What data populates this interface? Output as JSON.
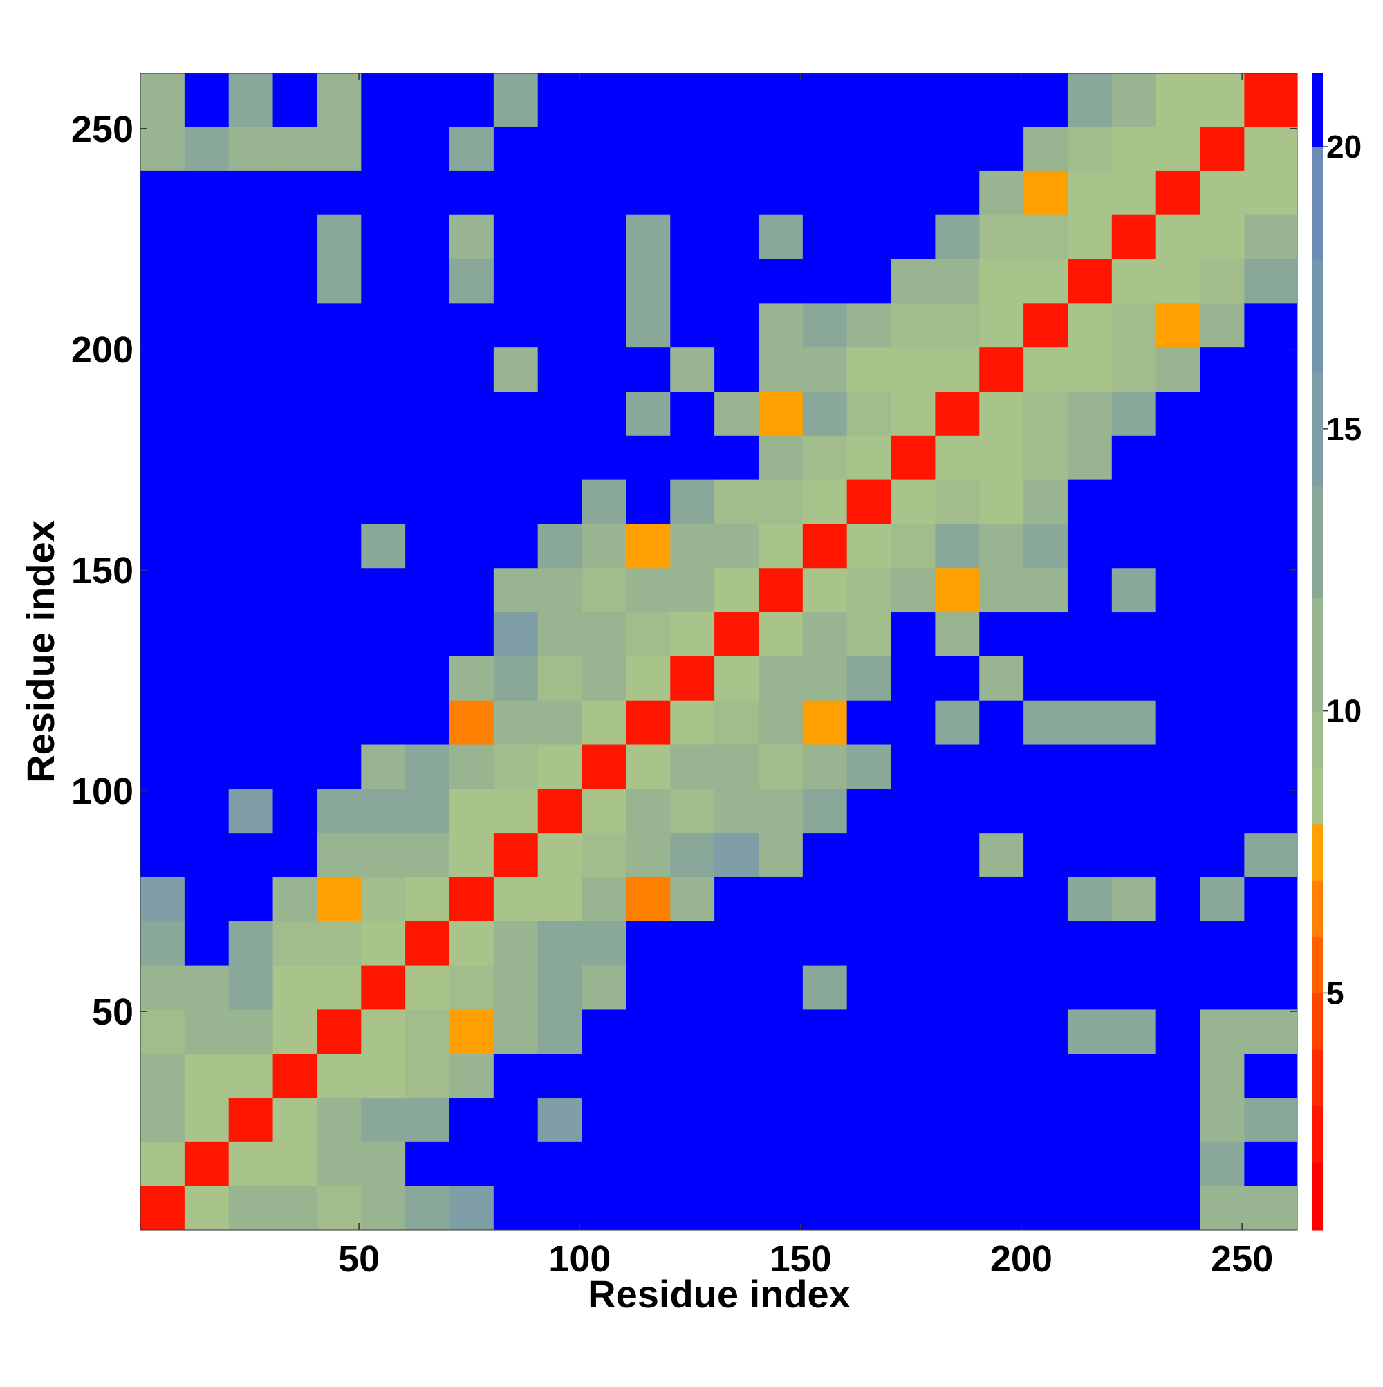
{
  "chart_data": {
    "type": "heatmap",
    "x_label": "Residue index",
    "y_label": "Residue index",
    "xlim": [
      0.5,
      262.5
    ],
    "ylim": [
      0.5,
      262.5
    ],
    "xticks": [
      50,
      100,
      150,
      200,
      250
    ],
    "yticks": [
      50,
      100,
      150,
      200,
      250
    ],
    "xbins": [
      0.5,
      10.5,
      20.5,
      30.5,
      40.5,
      50.5,
      60.5,
      70.5,
      80.5,
      90.5,
      100.5,
      110.5,
      120.5,
      130.5,
      140.5,
      150.5,
      160.5,
      170.5,
      180.5,
      190.5,
      200.5,
      210.5,
      220.5,
      230.5,
      240.5,
      250.5,
      262.5
    ],
    "ybins": [
      0.5,
      10.5,
      20.5,
      30.5,
      40.5,
      50.5,
      60.5,
      70.5,
      80.5,
      90.5,
      100.5,
      110.5,
      120.5,
      130.5,
      140.5,
      150.5,
      160.5,
      170.5,
      180.5,
      190.5,
      200.5,
      210.5,
      220.5,
      230.5,
      240.5,
      250.5,
      262.5
    ],
    "z": [
      [
        3,
        9,
        12,
        11,
        10,
        11,
        14,
        16,
        21,
        21,
        21,
        21,
        21,
        21,
        21,
        21,
        21,
        21,
        21,
        21,
        21,
        21,
        21,
        21,
        12,
        11
      ],
      [
        9,
        3,
        9,
        9,
        11,
        12,
        21,
        21,
        21,
        21,
        21,
        21,
        21,
        21,
        21,
        21,
        21,
        21,
        21,
        21,
        21,
        21,
        21,
        21,
        13,
        21
      ],
      [
        12,
        9,
        3,
        9,
        11,
        13,
        14,
        21,
        21,
        15,
        21,
        21,
        21,
        21,
        21,
        21,
        21,
        21,
        21,
        21,
        21,
        21,
        21,
        21,
        11,
        14
      ],
      [
        11,
        9,
        9,
        3,
        9,
        9,
        10,
        12,
        21,
        21,
        21,
        21,
        21,
        21,
        21,
        21,
        21,
        21,
        21,
        21,
        21,
        21,
        21,
        21,
        12,
        21
      ],
      [
        10,
        11,
        11,
        9,
        3,
        9,
        10,
        8,
        12,
        13,
        21,
        21,
        21,
        21,
        21,
        21,
        21,
        21,
        21,
        21,
        21,
        13,
        13,
        21,
        12,
        12
      ],
      [
        11,
        12,
        13,
        9,
        9,
        3,
        9,
        10,
        11,
        13,
        12,
        21,
        21,
        21,
        21,
        13,
        21,
        21,
        21,
        21,
        21,
        21,
        21,
        21,
        21,
        21
      ],
      [
        14,
        21,
        14,
        10,
        10,
        9,
        3,
        9,
        11,
        13,
        13,
        21,
        21,
        21,
        21,
        21,
        21,
        21,
        21,
        21,
        21,
        21,
        21,
        21,
        21,
        21
      ],
      [
        16,
        21,
        21,
        12,
        8,
        10,
        9,
        3,
        9,
        9,
        11,
        7,
        12,
        21,
        21,
        21,
        21,
        21,
        21,
        21,
        21,
        13,
        12,
        21,
        14,
        21
      ],
      [
        21,
        21,
        21,
        21,
        12,
        11,
        11,
        9,
        3,
        9,
        10,
        11,
        13,
        15,
        12,
        21,
        21,
        21,
        21,
        12,
        21,
        21,
        21,
        21,
        21,
        13
      ],
      [
        21,
        21,
        15,
        21,
        13,
        13,
        13,
        9,
        9,
        3,
        9,
        12,
        10,
        11,
        12,
        14,
        21,
        21,
        21,
        21,
        21,
        21,
        21,
        21,
        21,
        21
      ],
      [
        21,
        21,
        21,
        21,
        21,
        12,
        13,
        11,
        10,
        9,
        3,
        9,
        11,
        12,
        10,
        11,
        13,
        21,
        21,
        21,
        21,
        21,
        21,
        21,
        21,
        21
      ],
      [
        21,
        21,
        21,
        21,
        21,
        21,
        21,
        7,
        11,
        12,
        9,
        3,
        9,
        10,
        12,
        8,
        21,
        21,
        13,
        21,
        13,
        13,
        14,
        21,
        21,
        21
      ],
      [
        21,
        21,
        21,
        21,
        21,
        21,
        21,
        12,
        13,
        10,
        11,
        9,
        3,
        9,
        11,
        12,
        13,
        21,
        21,
        12,
        21,
        21,
        21,
        21,
        21,
        21
      ],
      [
        21,
        21,
        21,
        21,
        21,
        21,
        21,
        21,
        15,
        11,
        12,
        10,
        9,
        3,
        9,
        11,
        10,
        21,
        11,
        21,
        21,
        21,
        21,
        21,
        21,
        21
      ],
      [
        21,
        21,
        21,
        21,
        21,
        21,
        21,
        21,
        12,
        12,
        10,
        12,
        11,
        9,
        3,
        9,
        10,
        12,
        8,
        12,
        11,
        21,
        13,
        21,
        21,
        21
      ],
      [
        21,
        21,
        21,
        21,
        21,
        13,
        21,
        21,
        21,
        14,
        11,
        8,
        12,
        11,
        9,
        3,
        9,
        10,
        13,
        11,
        13,
        21,
        21,
        21,
        21,
        21
      ],
      [
        21,
        21,
        21,
        21,
        21,
        21,
        21,
        21,
        21,
        21,
        13,
        21,
        13,
        10,
        10,
        9,
        3,
        9,
        10,
        9,
        11,
        21,
        21,
        21,
        21,
        21
      ],
      [
        21,
        21,
        21,
        21,
        21,
        21,
        21,
        21,
        21,
        21,
        21,
        21,
        21,
        21,
        12,
        10,
        9,
        3,
        9,
        9,
        10,
        12,
        21,
        21,
        21,
        21
      ],
      [
        21,
        21,
        21,
        21,
        21,
        21,
        21,
        21,
        21,
        21,
        21,
        13,
        21,
        11,
        8,
        13,
        10,
        9,
        3,
        9,
        10,
        11,
        13,
        21,
        21,
        21
      ],
      [
        21,
        21,
        21,
        21,
        21,
        21,
        21,
        21,
        12,
        21,
        21,
        21,
        12,
        21,
        12,
        11,
        9,
        9,
        9,
        3,
        9,
        9,
        10,
        12,
        21,
        21
      ],
      [
        21,
        21,
        21,
        21,
        21,
        21,
        21,
        21,
        21,
        21,
        21,
        13,
        21,
        21,
        11,
        13,
        11,
        10,
        10,
        9,
        3,
        9,
        10,
        8,
        12,
        21
      ],
      [
        21,
        21,
        21,
        21,
        13,
        21,
        21,
        13,
        21,
        21,
        21,
        13,
        21,
        21,
        21,
        21,
        21,
        12,
        11,
        9,
        9,
        3,
        9,
        9,
        10,
        13
      ],
      [
        21,
        21,
        21,
        21,
        13,
        21,
        21,
        12,
        21,
        21,
        21,
        14,
        21,
        21,
        13,
        21,
        21,
        21,
        13,
        10,
        10,
        9,
        3,
        9,
        9,
        11
      ],
      [
        21,
        21,
        21,
        21,
        21,
        21,
        21,
        21,
        21,
        21,
        21,
        21,
        21,
        21,
        21,
        21,
        21,
        21,
        21,
        12,
        8,
        9,
        9,
        3,
        9,
        9
      ],
      [
        12,
        13,
        11,
        12,
        12,
        21,
        21,
        14,
        21,
        21,
        21,
        21,
        21,
        21,
        21,
        21,
        21,
        21,
        21,
        21,
        12,
        10,
        9,
        9,
        3,
        9
      ],
      [
        11,
        21,
        14,
        21,
        12,
        21,
        21,
        21,
        13,
        21,
        21,
        21,
        21,
        21,
        21,
        21,
        21,
        21,
        21,
        21,
        21,
        13,
        11,
        9,
        9,
        3
      ]
    ],
    "colorbar": {
      "lim": [
        0.8,
        21.3
      ],
      "ticks": [
        5,
        10,
        15,
        20
      ],
      "levels": [
        0.8,
        2,
        3,
        4,
        5,
        6,
        7,
        8,
        9,
        10,
        12,
        14,
        16,
        18,
        20,
        21.3
      ],
      "colors": [
        "#ff0000",
        "#ff1500",
        "#ff2b00",
        "#ff4400",
        "#ff6000",
        "#ff7f00",
        "#ffa000",
        "#a8c48a",
        "#a2bc8c",
        "#98b490",
        "#8aa89a",
        "#7f9ea6",
        "#7495ae",
        "#6a8cb6",
        "#0000ff"
      ]
    }
  }
}
